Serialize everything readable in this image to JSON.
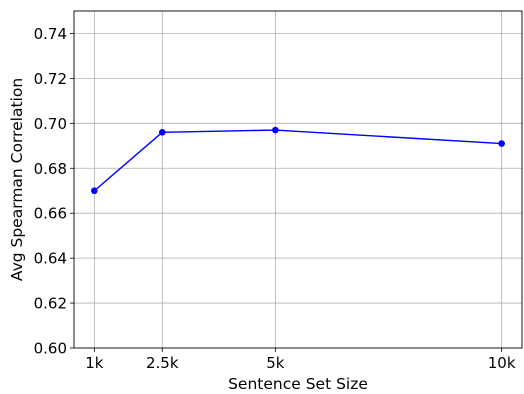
{
  "chart_data": {
    "type": "line",
    "title": "",
    "xlabel": "Sentence Set Size",
    "ylabel": "Avg Spearman Correlation",
    "x": [
      1000,
      2500,
      5000,
      10000
    ],
    "x_tick_values": [
      1000,
      2500,
      5000,
      10000
    ],
    "x_tick_labels": [
      "1k",
      "2.5k",
      "5k",
      "10k"
    ],
    "xlim": [
      550,
      10450
    ],
    "ylim": [
      0.6,
      0.75
    ],
    "y_tick_values": [
      0.6,
      0.62,
      0.64,
      0.66,
      0.68,
      0.7,
      0.72,
      0.74
    ],
    "y_tick_labels": [
      "0.60",
      "0.62",
      "0.64",
      "0.66",
      "0.68",
      "0.70",
      "0.72",
      "0.74"
    ],
    "grid": true,
    "series": [
      {
        "values": [
          0.67,
          0.696,
          0.697,
          0.691
        ],
        "color": "#0000ff",
        "marker": "circle"
      }
    ]
  }
}
